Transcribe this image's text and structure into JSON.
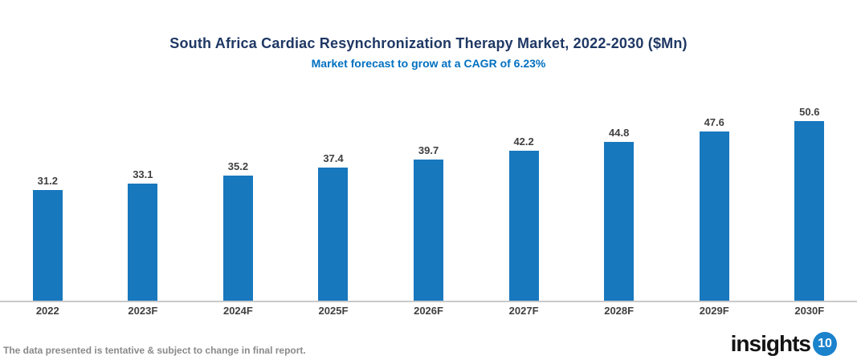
{
  "header": {
    "title": "South Africa Cardiac Resynchronization Therapy Market, 2022-2030 ($Mn)",
    "subtitle": "Market forecast to grow at a CAGR of 6.23%"
  },
  "chart_data": {
    "type": "bar",
    "title": "South Africa Cardiac Resynchronization Therapy Market, 2022-2030 ($Mn)",
    "subtitle": "Market forecast to grow at a CAGR of 6.23%",
    "categories": [
      "2022",
      "2023F",
      "2024F",
      "2025F",
      "2026F",
      "2027F",
      "2028F",
      "2029F",
      "2030F"
    ],
    "values": [
      31.2,
      33.1,
      35.2,
      37.4,
      39.7,
      42.2,
      44.8,
      47.6,
      50.6
    ],
    "xlabel": "",
    "ylabel": "",
    "ylim": [
      0,
      61
    ],
    "grid": false,
    "legend": false,
    "data_labels": true,
    "bar_color": "#1878BE"
  },
  "footer": {
    "note": "The data presented is tentative & subject to change in final report."
  },
  "logo": {
    "text": "insights",
    "badge": "10"
  },
  "colors": {
    "title": "#1F3864",
    "subtitle": "#0070C0",
    "bar": "#1878BE",
    "data_label": "#404040",
    "axis_line": "#C9C9C9",
    "footer_text": "#8A8A8A",
    "logo_badge": "#1B82CC"
  }
}
